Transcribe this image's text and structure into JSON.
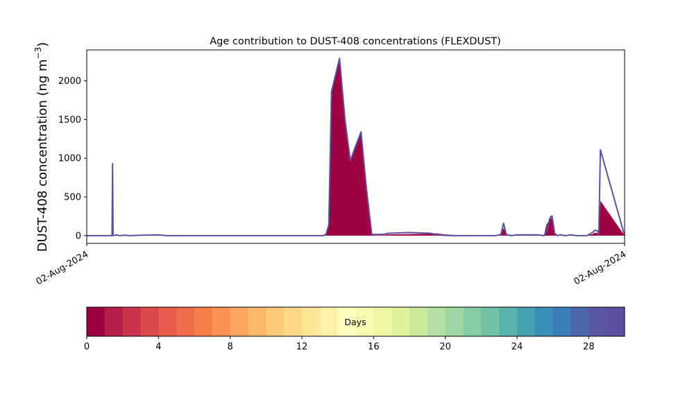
{
  "chart_data": {
    "type": "area",
    "title": "Age contribution to DUST-408 concentrations (FLEXDUST)",
    "ylabel_main": "DUST-408 concentration (ng m",
    "ylabel_sup": "−3",
    "ylabel_close": ")",
    "xlabel": "",
    "x_tick_labels": [
      "02-Aug-2024",
      "02-Aug-2024"
    ],
    "x": [
      0.0,
      0.047,
      0.048,
      0.049,
      0.05,
      0.055,
      0.06,
      0.07,
      0.08,
      0.1,
      0.13,
      0.15,
      0.17,
      0.2,
      0.25,
      0.3,
      0.35,
      0.4,
      0.44,
      0.445,
      0.45,
      0.455,
      0.47,
      0.48,
      0.49,
      0.5,
      0.51,
      0.52,
      0.53,
      0.54,
      0.55,
      0.555,
      0.56,
      0.6,
      0.64,
      0.65,
      0.66,
      0.68,
      0.7,
      0.72,
      0.74,
      0.76,
      0.77,
      0.775,
      0.78,
      0.79,
      0.8,
      0.82,
      0.84,
      0.85,
      0.855,
      0.86,
      0.862,
      0.865,
      0.87,
      0.875,
      0.88,
      0.89,
      0.9,
      0.91,
      0.92,
      0.93,
      0.94,
      0.945,
      0.95,
      0.952,
      0.955,
      1.0
    ],
    "ylim": [
      -100,
      2400
    ],
    "y_ticks": [
      0,
      500,
      1000,
      1500,
      2000
    ],
    "series": [
      {
        "color": "#9e0142",
        "values": [
          0,
          0,
          520,
          0,
          0,
          5,
          0,
          3,
          0,
          3,
          5,
          0,
          0,
          0,
          0,
          0,
          0,
          0,
          0,
          20,
          130,
          1850,
          2280,
          1500,
          960,
          1150,
          1330,
          600,
          10,
          5,
          8,
          10,
          15,
          20,
          25,
          30,
          20,
          10,
          0,
          0,
          0,
          0,
          10,
          100,
          10,
          0,
          5,
          5,
          10,
          0,
          150,
          190,
          220,
          230,
          20,
          0,
          5,
          0,
          5,
          0,
          0,
          0,
          20,
          40,
          30,
          0,
          450,
          0
        ]
      },
      {
        "color": "#5e4fa2",
        "values": [
          0,
          0,
          930,
          0,
          0,
          10,
          0,
          5,
          0,
          5,
          10,
          0,
          0,
          0,
          0,
          0,
          0,
          0,
          0,
          20,
          140,
          1860,
          2290,
          1510,
          970,
          1160,
          1340,
          610,
          15,
          15,
          18,
          20,
          30,
          40,
          30,
          15,
          5,
          0,
          0,
          0,
          0,
          0,
          15,
          160,
          15,
          0,
          10,
          10,
          10,
          0,
          40,
          200,
          240,
          255,
          30,
          0,
          10,
          0,
          10,
          0,
          0,
          0,
          40,
          70,
          60,
          10,
          1110,
          0
        ]
      }
    ],
    "colorbar": {
      "label": "Days",
      "min": 0,
      "max": 30,
      "ticks": [
        0,
        4,
        8,
        12,
        16,
        20,
        24,
        28
      ],
      "colors": [
        "#9e0142",
        "#b51f48",
        "#cb334c",
        "#dc494c",
        "#e65b4b",
        "#f06b4a",
        "#f67e4b",
        "#f99355",
        "#fca761",
        "#fdb96a",
        "#fdca79",
        "#fed889",
        "#fee597",
        "#fff1a8",
        "#fffebe",
        "#f7fbb2",
        "#eef8a3",
        "#dff299",
        "#cbe99d",
        "#b6e0a2",
        "#9ed7a4",
        "#86ccA4",
        "#70c2a5",
        "#5ab4a9",
        "#46a2b0",
        "#3a8fb7",
        "#3a7db8",
        "#4b68ad",
        "#5b55a3",
        "#5e4fa2"
      ]
    }
  }
}
